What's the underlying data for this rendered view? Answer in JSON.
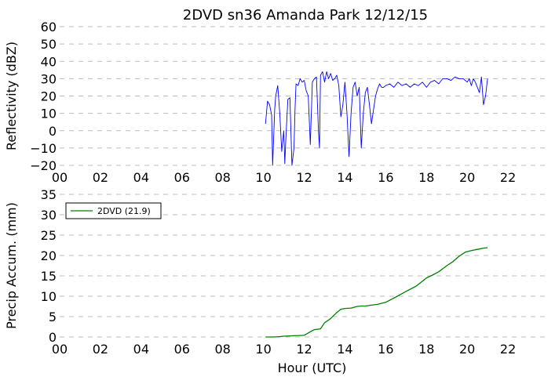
{
  "chart_data": [
    {
      "type": "line",
      "title": "2DVD sn36 Amanda Park 12/12/15",
      "ylabel": "Reflectivity (dBZ)",
      "xlabel": "",
      "xlim": [
        0,
        24
      ],
      "ylim": [
        -20,
        60
      ],
      "xticks": [
        0,
        2,
        4,
        6,
        8,
        10,
        12,
        14,
        16,
        18,
        20,
        22
      ],
      "xtick_labels": [
        "00",
        "02",
        "04",
        "06",
        "08",
        "10",
        "12",
        "14",
        "16",
        "18",
        "20",
        "22"
      ],
      "yticks": [
        -20,
        -10,
        0,
        10,
        20,
        30,
        40,
        50,
        60
      ],
      "ytick_labels": [
        "−20",
        "−10",
        "0",
        "10",
        "20",
        "30",
        "40",
        "50",
        "60"
      ],
      "grid": "horizontal dashed",
      "series": [
        {
          "color": "#0000ff",
          "x": [
            10.1,
            10.2,
            10.3,
            10.4,
            10.45,
            10.55,
            10.6,
            10.7,
            10.8,
            10.9,
            11.0,
            11.05,
            11.1,
            11.2,
            11.3,
            11.4,
            11.5,
            11.55,
            11.6,
            11.7,
            11.8,
            11.9,
            12.0,
            12.1,
            12.2,
            12.3,
            12.4,
            12.5,
            12.6,
            12.7,
            12.75,
            12.8,
            12.9,
            13.0,
            13.1,
            13.2,
            13.3,
            13.4,
            13.5,
            13.6,
            13.7,
            13.8,
            13.9,
            14.0,
            14.1,
            14.2,
            14.3,
            14.4,
            14.5,
            14.6,
            14.7,
            14.8,
            14.9,
            15.0,
            15.1,
            15.2,
            15.3,
            15.4,
            15.5,
            15.6,
            15.7,
            15.8,
            15.9,
            16.0,
            16.2,
            16.4,
            16.6,
            16.8,
            17.0,
            17.2,
            17.4,
            17.6,
            17.8,
            18.0,
            18.2,
            18.4,
            18.6,
            18.8,
            19.0,
            19.2,
            19.4,
            19.6,
            19.8,
            20.0,
            20.1,
            20.2,
            20.3,
            20.4,
            20.5,
            20.6,
            20.7,
            20.8,
            20.9,
            21.0
          ],
          "y": [
            4,
            17,
            15,
            9,
            -20,
            12,
            20,
            26,
            10,
            -12,
            0,
            -19,
            -5,
            18,
            19,
            -20,
            -10,
            12,
            27,
            26,
            30,
            28,
            29,
            23,
            20,
            -8,
            28,
            30,
            31,
            0,
            -10,
            32,
            34,
            28,
            34,
            30,
            33,
            29,
            30,
            32,
            26,
            8,
            15,
            28,
            10,
            -15,
            10,
            25,
            28,
            20,
            25,
            -10,
            10,
            22,
            25,
            15,
            4,
            12,
            20,
            24,
            27,
            25,
            25,
            26,
            27,
            25,
            28,
            26,
            27,
            25,
            27,
            26,
            28,
            25,
            28,
            29,
            27,
            30,
            30,
            29,
            31,
            30,
            30,
            28,
            30,
            26,
            30,
            28,
            25,
            22,
            31,
            15,
            20,
            30
          ]
        }
      ]
    },
    {
      "type": "line",
      "title": "",
      "ylabel": "Precip Accum. (mm)",
      "xlabel": "Hour (UTC)",
      "xlim": [
        0,
        24
      ],
      "ylim": [
        0,
        35
      ],
      "xticks": [
        0,
        2,
        4,
        6,
        8,
        10,
        12,
        14,
        16,
        18,
        20,
        22
      ],
      "xtick_labels": [
        "00",
        "02",
        "04",
        "06",
        "08",
        "10",
        "12",
        "14",
        "16",
        "18",
        "20",
        "22"
      ],
      "yticks": [
        0,
        5,
        10,
        15,
        20,
        25,
        30,
        35
      ],
      "ytick_labels": [
        "0",
        "5",
        "10",
        "15",
        "20",
        "25",
        "30",
        "35"
      ],
      "grid": "horizontal dashed",
      "legend": "top-left",
      "series": [
        {
          "name": "2DVD (21.9)",
          "color": "#008000",
          "x": [
            10.1,
            10.5,
            10.8,
            11.0,
            11.5,
            12.0,
            12.2,
            12.5,
            12.8,
            13.0,
            13.3,
            13.6,
            13.8,
            14.0,
            14.3,
            14.6,
            14.8,
            15.0,
            15.3,
            15.6,
            16.0,
            16.5,
            17.0,
            17.5,
            18.0,
            18.3,
            18.6,
            19.0,
            19.3,
            19.6,
            19.9,
            20.2,
            20.4,
            20.6,
            20.7,
            20.8,
            21.0
          ],
          "y": [
            0,
            0,
            0.1,
            0.2,
            0.3,
            0.4,
            1.0,
            1.8,
            2.0,
            3.5,
            4.5,
            6.0,
            6.8,
            7.0,
            7.1,
            7.5,
            7.6,
            7.6,
            7.8,
            8.0,
            8.5,
            9.8,
            11.2,
            12.5,
            14.5,
            15.2,
            16.0,
            17.5,
            18.5,
            19.8,
            20.8,
            21.2,
            21.4,
            21.6,
            21.7,
            21.8,
            21.9
          ]
        }
      ]
    }
  ]
}
